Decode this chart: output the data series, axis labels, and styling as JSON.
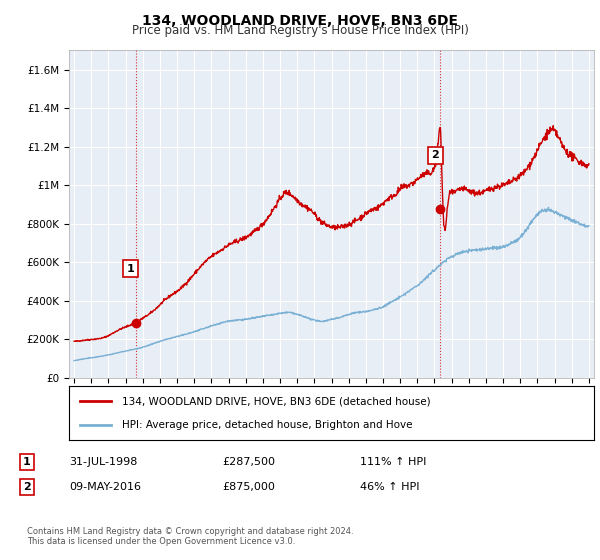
{
  "title": "134, WOODLAND DRIVE, HOVE, BN3 6DE",
  "subtitle": "Price paid vs. HM Land Registry's House Price Index (HPI)",
  "ylabel_ticks": [
    "£0",
    "£200K",
    "£400K",
    "£600K",
    "£800K",
    "£1M",
    "£1.2M",
    "£1.4M",
    "£1.6M"
  ],
  "ylim": [
    0,
    1700000
  ],
  "ytick_values": [
    0,
    200000,
    400000,
    600000,
    800000,
    1000000,
    1200000,
    1400000,
    1600000
  ],
  "red_line_color": "#cc0000",
  "blue_line_color": "#7ab0d4",
  "sale1": {
    "date_num": 1998.58,
    "price": 287500,
    "label": "1"
  },
  "sale2": {
    "date_num": 2016.35,
    "price": 875000,
    "label": "2"
  },
  "legend_line1": "134, WOODLAND DRIVE, HOVE, BN3 6DE (detached house)",
  "legend_line2": "HPI: Average price, detached house, Brighton and Hove",
  "annotation1_date": "31-JUL-1998",
  "annotation1_price": "£287,500",
  "annotation1_hpi": "111% ↑ HPI",
  "annotation2_date": "09-MAY-2016",
  "annotation2_price": "£875,000",
  "annotation2_hpi": "46% ↑ HPI",
  "footer": "Contains HM Land Registry data © Crown copyright and database right 2024.\nThis data is licensed under the Open Government Licence v3.0.",
  "plot_bg_color": "#e8eef5",
  "grid_color": "#ffffff",
  "xmin": 1994.7,
  "xmax": 2025.3
}
